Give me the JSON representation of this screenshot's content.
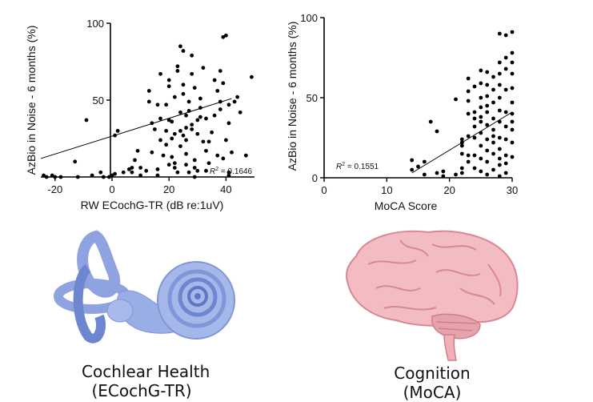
{
  "colors": {
    "marker": "#000000",
    "axis": "#000000",
    "ear_main": "#9aaee6",
    "ear_dark": "#5f78c6",
    "brain_main": "#f3bcc2",
    "brain_dark": "#d88891"
  },
  "chart_data": [
    {
      "type": "scatter",
      "title": "",
      "xlabel": "RW ECochG-TR (dB re:1uV)",
      "ylabel": "AzBio in Noise - 6 months (%)",
      "xlim": [
        -25,
        50
      ],
      "ylim": [
        0,
        100
      ],
      "xticks": [
        -20,
        0,
        20,
        40
      ],
      "yticks": [
        0,
        50,
        100
      ],
      "xtick_labels": [
        "-20",
        "0",
        "20",
        "40"
      ],
      "ytick_labels": [
        "",
        "50",
        "100"
      ],
      "grid": false,
      "annotation": {
        "r2_label": "R",
        "r2_sup": "2",
        "r2_value": " = 0.1646"
      },
      "trendline": {
        "x": [
          -25,
          42
        ],
        "y": [
          12,
          51
        ]
      },
      "points": [
        [
          -24,
          1
        ],
        [
          -23,
          0
        ],
        [
          -21,
          1
        ],
        [
          -20,
          0
        ],
        [
          -18,
          0
        ],
        [
          -12,
          0
        ],
        [
          -13,
          10
        ],
        [
          -9,
          37
        ],
        [
          -7,
          1
        ],
        [
          -4,
          3
        ],
        [
          -3,
          0
        ],
        [
          -1,
          0
        ],
        [
          0,
          1
        ],
        [
          1,
          2
        ],
        [
          1,
          27
        ],
        [
          2,
          30
        ],
        [
          4,
          3
        ],
        [
          6,
          5
        ],
        [
          7,
          3
        ],
        [
          7,
          6
        ],
        [
          8,
          11
        ],
        [
          9,
          17
        ],
        [
          10,
          6
        ],
        [
          10,
          1
        ],
        [
          12,
          4
        ],
        [
          13,
          49
        ],
        [
          13,
          56
        ],
        [
          14,
          35
        ],
        [
          14,
          16
        ],
        [
          15,
          31
        ],
        [
          16,
          47
        ],
        [
          16,
          5
        ],
        [
          16,
          1
        ],
        [
          17,
          24
        ],
        [
          17,
          38
        ],
        [
          17,
          67
        ],
        [
          18,
          14
        ],
        [
          19,
          21
        ],
        [
          19,
          30
        ],
        [
          20,
          37
        ],
        [
          20,
          59
        ],
        [
          20,
          63
        ],
        [
          21,
          13
        ],
        [
          21,
          25
        ],
        [
          21,
          36
        ],
        [
          22,
          6
        ],
        [
          22,
          52
        ],
        [
          22,
          9
        ],
        [
          23,
          69
        ],
        [
          23,
          72
        ],
        [
          23,
          3
        ],
        [
          24,
          20
        ],
        [
          24,
          30
        ],
        [
          25,
          54
        ],
        [
          25,
          60
        ],
        [
          26,
          15
        ],
        [
          26,
          24
        ],
        [
          26,
          40
        ],
        [
          27,
          43
        ],
        [
          27,
          49
        ],
        [
          28,
          31
        ],
        [
          28,
          79
        ],
        [
          29,
          58
        ],
        [
          29,
          0
        ],
        [
          30,
          4
        ],
        [
          30,
          37
        ],
        [
          31,
          45
        ],
        [
          31,
          51
        ],
        [
          32,
          71
        ],
        [
          32,
          23
        ],
        [
          33,
          17
        ],
        [
          33,
          4
        ],
        [
          34,
          9
        ],
        [
          35,
          29
        ],
        [
          36,
          40
        ],
        [
          37,
          14
        ],
        [
          38,
          44
        ],
        [
          38,
          49
        ],
        [
          39,
          61
        ],
        [
          39,
          12
        ],
        [
          40,
          24
        ],
        [
          41,
          1
        ],
        [
          41,
          3
        ],
        [
          42,
          16
        ],
        [
          30,
          28
        ],
        [
          31,
          39
        ],
        [
          25,
          27
        ],
        [
          26,
          32
        ],
        [
          28,
          34
        ],
        [
          24,
          42
        ],
        [
          27,
          3
        ],
        [
          29,
          6
        ],
        [
          19,
          47
        ],
        [
          22,
          28
        ],
        [
          20,
          8
        ],
        [
          29,
          11
        ],
        [
          34,
          23
        ],
        [
          26,
          8
        ],
        [
          37,
          56
        ],
        [
          36,
          63
        ],
        [
          41,
          35
        ],
        [
          33,
          38
        ],
        [
          28,
          67
        ],
        [
          24,
          85
        ],
        [
          25,
          82
        ],
        [
          39,
          91
        ],
        [
          40,
          92
        ],
        [
          41,
          47
        ],
        [
          43,
          49
        ],
        [
          49,
          65
        ],
        [
          45,
          42
        ],
        [
          47,
          14
        ],
        [
          38,
          69
        ],
        [
          44,
          52
        ]
      ]
    },
    {
      "type": "scatter",
      "title": "",
      "xlabel": "MoCA Score",
      "ylabel": "AzBio in Noise - 6 months (%)",
      "xlim": [
        0,
        30
      ],
      "ylim": [
        0,
        100
      ],
      "xticks": [
        0,
        10,
        20,
        30
      ],
      "yticks": [
        0,
        50,
        100
      ],
      "xtick_labels": [
        "0",
        "10",
        "20",
        "30"
      ],
      "ytick_labels": [
        "0",
        "50",
        "100"
      ],
      "grid": false,
      "annotation": {
        "r2_label": "R",
        "r2_sup": "2",
        "r2_value": " = 0.1551"
      },
      "trendline": {
        "x": [
          14,
          30
        ],
        "y": [
          3,
          41
        ]
      },
      "points": [
        [
          14,
          5
        ],
        [
          14,
          11
        ],
        [
          15,
          7
        ],
        [
          16,
          2
        ],
        [
          16,
          10
        ],
        [
          17,
          35
        ],
        [
          18,
          3
        ],
        [
          18,
          29
        ],
        [
          19,
          1
        ],
        [
          19,
          4
        ],
        [
          21,
          2
        ],
        [
          21,
          49
        ],
        [
          22,
          22
        ],
        [
          22,
          20
        ],
        [
          22,
          15
        ],
        [
          22,
          6
        ],
        [
          22,
          3
        ],
        [
          23,
          14
        ],
        [
          23,
          48
        ],
        [
          23,
          54
        ],
        [
          23,
          62
        ],
        [
          23,
          26
        ],
        [
          23,
          10
        ],
        [
          24,
          25
        ],
        [
          24,
          32
        ],
        [
          24,
          41
        ],
        [
          24,
          57
        ],
        [
          24,
          6
        ],
        [
          24,
          14
        ],
        [
          25,
          4
        ],
        [
          25,
          12
        ],
        [
          25,
          20
        ],
        [
          25,
          28
        ],
        [
          25,
          35
        ],
        [
          25,
          44
        ],
        [
          25,
          50
        ],
        [
          25,
          59
        ],
        [
          25,
          67
        ],
        [
          26,
          2
        ],
        [
          26,
          10
        ],
        [
          26,
          17
        ],
        [
          26,
          24
        ],
        [
          26,
          33
        ],
        [
          26,
          41
        ],
        [
          26,
          51
        ],
        [
          26,
          58
        ],
        [
          26,
          66
        ],
        [
          27,
          5
        ],
        [
          27,
          15
        ],
        [
          27,
          26
        ],
        [
          27,
          37
        ],
        [
          27,
          47
        ],
        [
          27,
          55
        ],
        [
          27,
          63
        ],
        [
          28,
          1
        ],
        [
          28,
          8
        ],
        [
          28,
          18
        ],
        [
          28,
          25
        ],
        [
          28,
          35
        ],
        [
          28,
          42
        ],
        [
          28,
          50
        ],
        [
          28,
          58
        ],
        [
          28,
          65
        ],
        [
          28,
          72
        ],
        [
          28,
          90
        ],
        [
          29,
          3
        ],
        [
          29,
          14
        ],
        [
          29,
          24
        ],
        [
          29,
          32
        ],
        [
          29,
          41
        ],
        [
          29,
          55
        ],
        [
          29,
          68
        ],
        [
          29,
          75
        ],
        [
          29,
          89
        ],
        [
          30,
          13
        ],
        [
          30,
          22
        ],
        [
          30,
          30
        ],
        [
          30,
          35
        ],
        [
          30,
          40
        ],
        [
          30,
          47
        ],
        [
          30,
          56
        ],
        [
          30,
          65
        ],
        [
          30,
          72
        ],
        [
          30,
          78
        ],
        [
          30,
          91
        ],
        [
          24,
          37
        ],
        [
          25,
          38
        ],
        [
          27,
          22
        ],
        [
          28,
          12
        ],
        [
          29,
          9
        ],
        [
          23,
          40
        ],
        [
          22,
          24
        ],
        [
          27,
          30
        ],
        [
          26,
          45
        ]
      ]
    }
  ],
  "captions": [
    {
      "line1": "Cochlear Health",
      "line2": "(ECochG-TR)"
    },
    {
      "line1": "Cognition",
      "line2": "(MoCA)"
    }
  ]
}
